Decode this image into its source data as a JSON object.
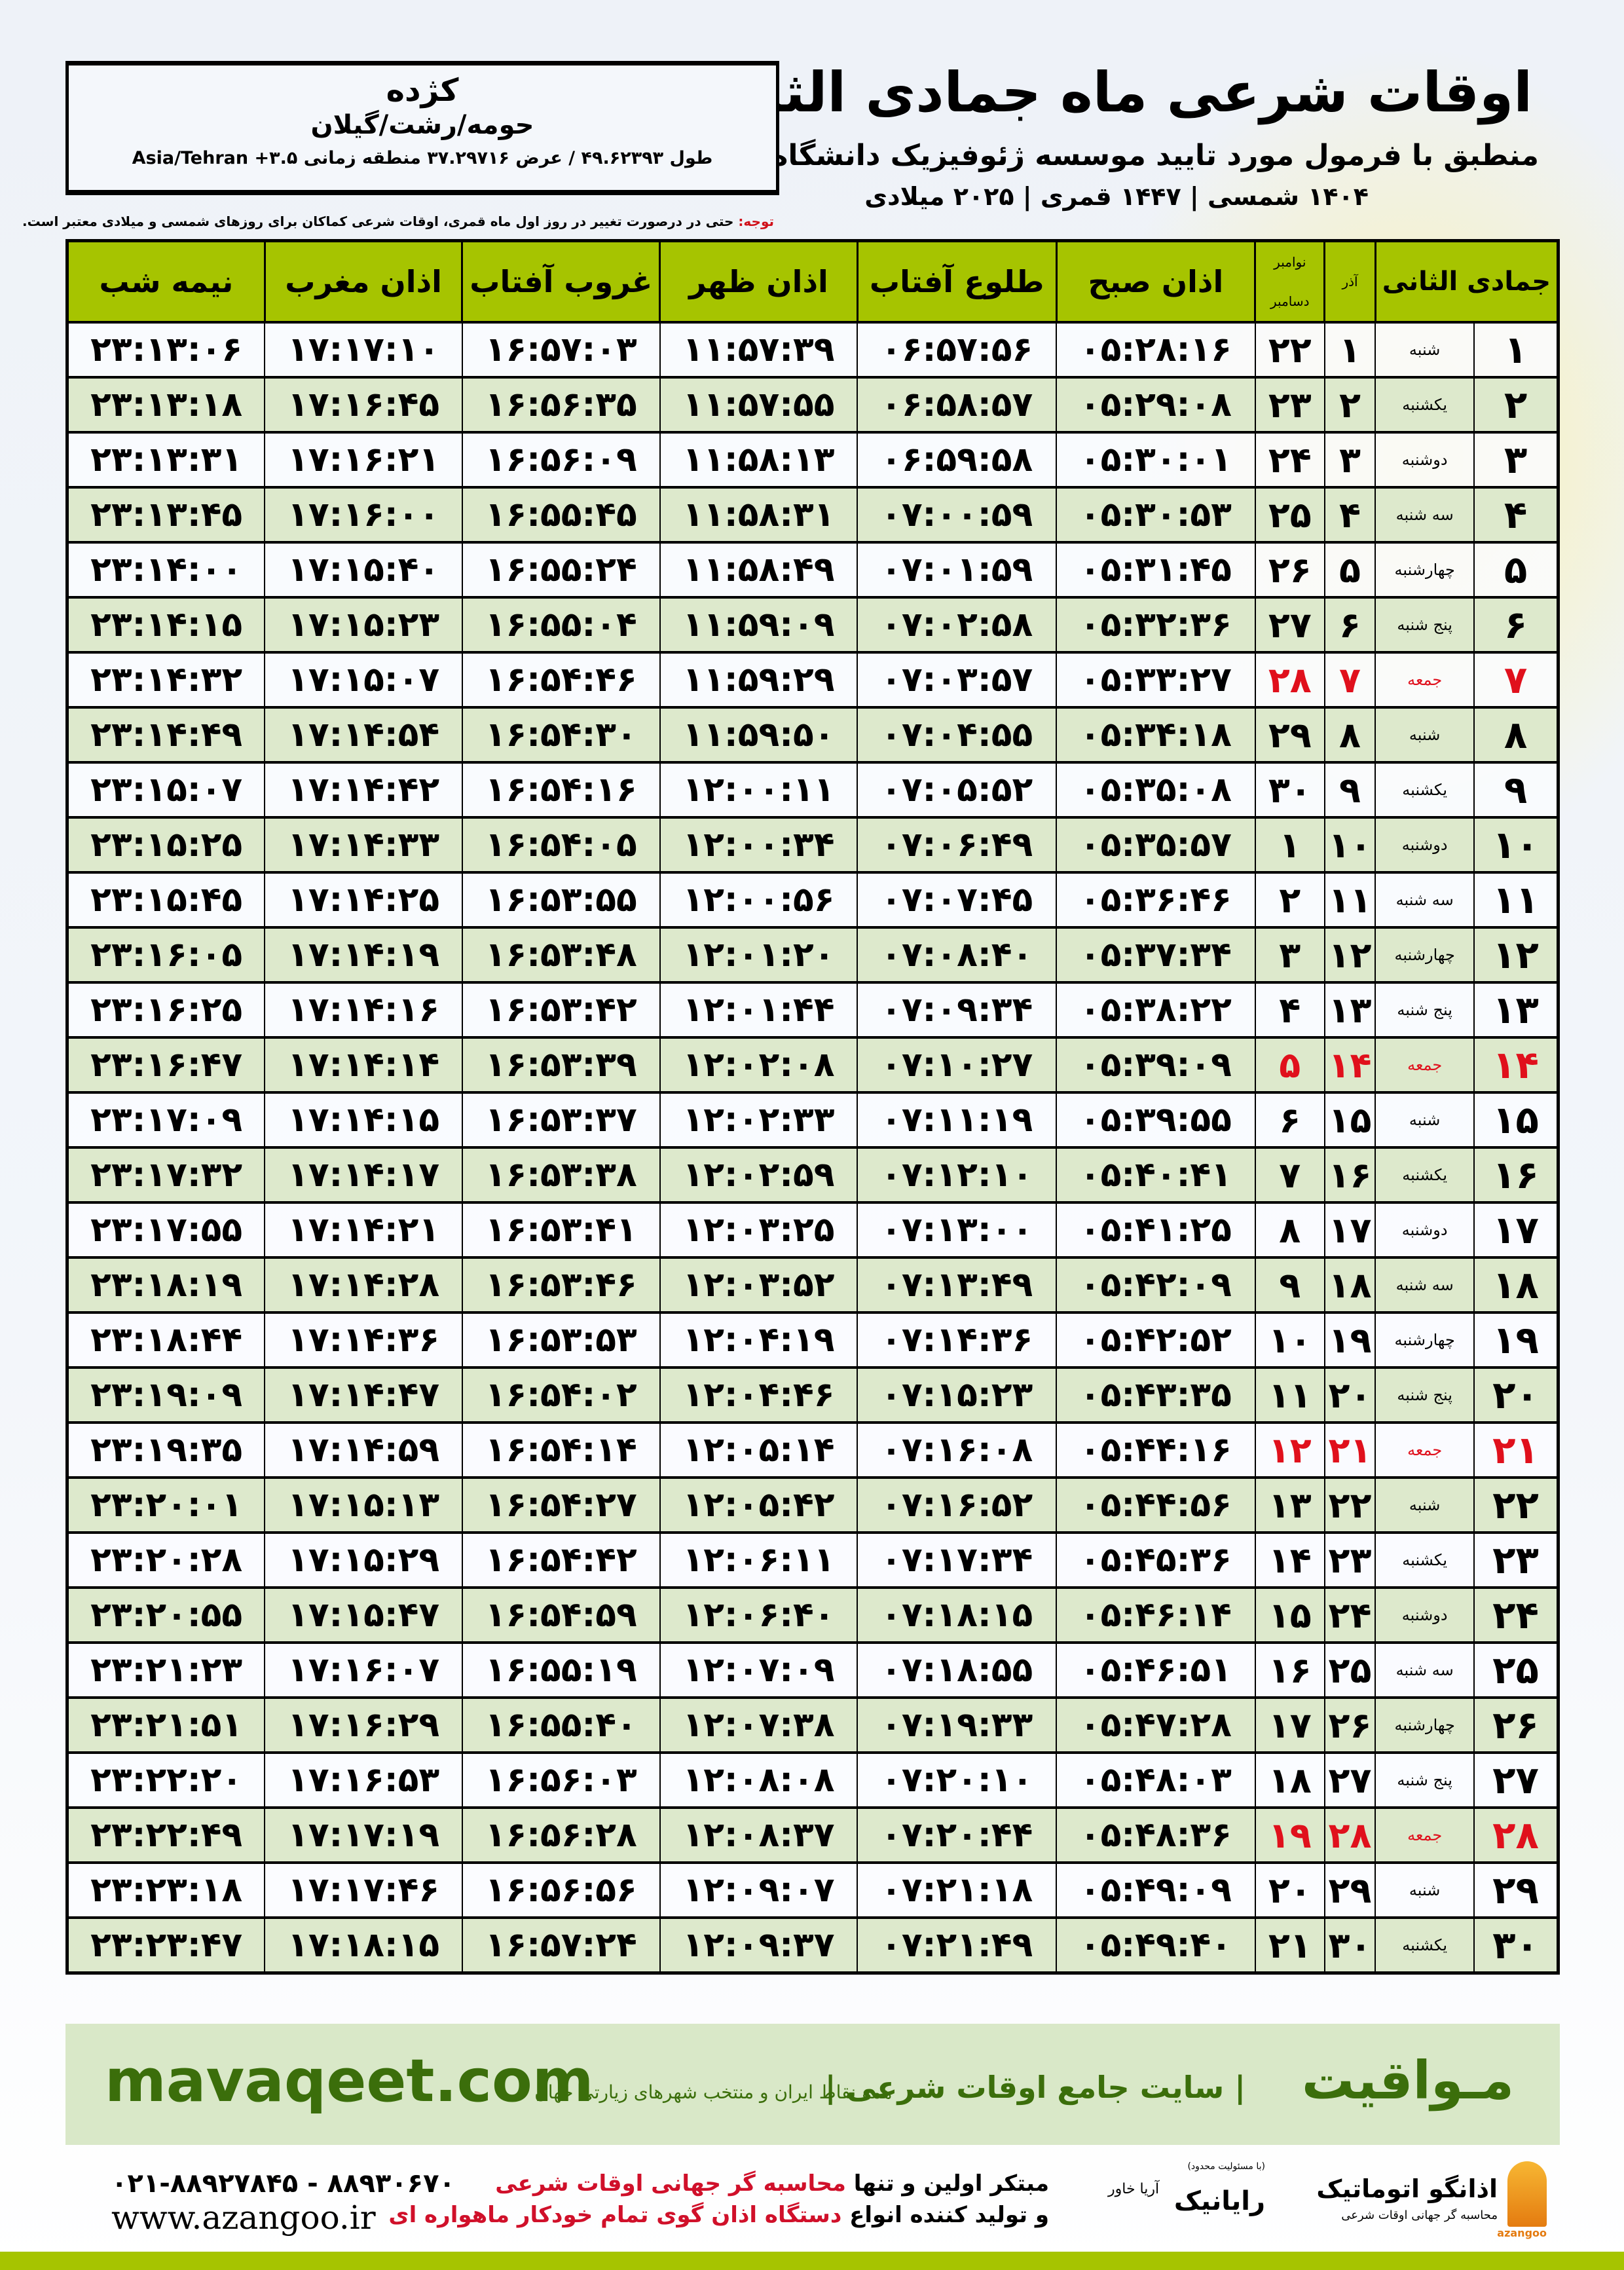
{
  "header": {
    "title": "اوقات شرعی ماه جمادی الثانی",
    "subtitle": "منطبق با فرمول مورد تایید موسسه ژئوفیزیک دانشگاه تهران",
    "dates": "۱۴۰۴ شمسی | ۱۴۴۷ قمری | ۲۰۲۵ میلادی"
  },
  "location": {
    "city": "کژده",
    "region": "حومه/رشت/گیلان",
    "coords": "طول ۴۹.۶۲۳۹۳ / عرض ۳۷.۲۹۷۱۶ منطقه زمانی ۳.۵+ Asia/Tehran"
  },
  "note": {
    "label": "توجه:",
    "text": " حتی در درصورت تغییر در روز اول ماه قمری، اوقات شرعی کماکان برای روزهای شمسی و میلادی معتبر است."
  },
  "table": {
    "headers": {
      "hijri": "جمادی الثانی",
      "azar": "آذر",
      "nov": "نوامبر",
      "dec": "دسامبر",
      "fajr": "اذان صبح",
      "sunrise": "طلوع آفتاب",
      "dhuhr": "اذان ظهر",
      "sunset": "غروب آفتاب",
      "maghrib": "اذان مغرب",
      "midnight": "نیمه شب"
    },
    "friday_color": "#e0101c",
    "header_color": "#a6c400",
    "rows": [
      {
        "day": "۱",
        "weekday": "شنبه",
        "azar": "۱",
        "gregorian": "۲۲",
        "fajr": "۰۵:۲۸:۱۶",
        "sunrise": "۰۶:۵۷:۵۶",
        "dhuhr": "۱۱:۵۷:۳۹",
        "sunset": "۱۶:۵۷:۰۳",
        "maghrib": "۱۷:۱۷:۱۰",
        "midnight": "۲۳:۱۳:۰۶",
        "friday": false
      },
      {
        "day": "۲",
        "weekday": "یکشنبه",
        "azar": "۲",
        "gregorian": "۲۳",
        "fajr": "۰۵:۲۹:۰۸",
        "sunrise": "۰۶:۵۸:۵۷",
        "dhuhr": "۱۱:۵۷:۵۵",
        "sunset": "۱۶:۵۶:۳۵",
        "maghrib": "۱۷:۱۶:۴۵",
        "midnight": "۲۳:۱۳:۱۸",
        "friday": false
      },
      {
        "day": "۳",
        "weekday": "دوشنبه",
        "azar": "۳",
        "gregorian": "۲۴",
        "fajr": "۰۵:۳۰:۰۱",
        "sunrise": "۰۶:۵۹:۵۸",
        "dhuhr": "۱۱:۵۸:۱۳",
        "sunset": "۱۶:۵۶:۰۹",
        "maghrib": "۱۷:۱۶:۲۱",
        "midnight": "۲۳:۱۳:۳۱",
        "friday": false
      },
      {
        "day": "۴",
        "weekday": "سه شنبه",
        "azar": "۴",
        "gregorian": "۲۵",
        "fajr": "۰۵:۳۰:۵۳",
        "sunrise": "۰۷:۰۰:۵۹",
        "dhuhr": "۱۱:۵۸:۳۱",
        "sunset": "۱۶:۵۵:۴۵",
        "maghrib": "۱۷:۱۶:۰۰",
        "midnight": "۲۳:۱۳:۴۵",
        "friday": false
      },
      {
        "day": "۵",
        "weekday": "چهارشنبه",
        "azar": "۵",
        "gregorian": "۲۶",
        "fajr": "۰۵:۳۱:۴۵",
        "sunrise": "۰۷:۰۱:۵۹",
        "dhuhr": "۱۱:۵۸:۴۹",
        "sunset": "۱۶:۵۵:۲۴",
        "maghrib": "۱۷:۱۵:۴۰",
        "midnight": "۲۳:۱۴:۰۰",
        "friday": false
      },
      {
        "day": "۶",
        "weekday": "پنج شنبه",
        "azar": "۶",
        "gregorian": "۲۷",
        "fajr": "۰۵:۳۲:۳۶",
        "sunrise": "۰۷:۰۲:۵۸",
        "dhuhr": "۱۱:۵۹:۰۹",
        "sunset": "۱۶:۵۵:۰۴",
        "maghrib": "۱۷:۱۵:۲۳",
        "midnight": "۲۳:۱۴:۱۵",
        "friday": false
      },
      {
        "day": "۷",
        "weekday": "جمعه",
        "azar": "۷",
        "gregorian": "۲۸",
        "fajr": "۰۵:۳۳:۲۷",
        "sunrise": "۰۷:۰۳:۵۷",
        "dhuhr": "۱۱:۵۹:۲۹",
        "sunset": "۱۶:۵۴:۴۶",
        "maghrib": "۱۷:۱۵:۰۷",
        "midnight": "۲۳:۱۴:۳۲",
        "friday": true
      },
      {
        "day": "۸",
        "weekday": "شنبه",
        "azar": "۸",
        "gregorian": "۲۹",
        "fajr": "۰۵:۳۴:۱۸",
        "sunrise": "۰۷:۰۴:۵۵",
        "dhuhr": "۱۱:۵۹:۵۰",
        "sunset": "۱۶:۵۴:۳۰",
        "maghrib": "۱۷:۱۴:۵۴",
        "midnight": "۲۳:۱۴:۴۹",
        "friday": false
      },
      {
        "day": "۹",
        "weekday": "یکشنبه",
        "azar": "۹",
        "gregorian": "۳۰",
        "fajr": "۰۵:۳۵:۰۸",
        "sunrise": "۰۷:۰۵:۵۲",
        "dhuhr": "۱۲:۰۰:۱۱",
        "sunset": "۱۶:۵۴:۱۶",
        "maghrib": "۱۷:۱۴:۴۲",
        "midnight": "۲۳:۱۵:۰۷",
        "friday": false
      },
      {
        "day": "۱۰",
        "weekday": "دوشنبه",
        "azar": "۱۰",
        "gregorian": "۱",
        "fajr": "۰۵:۳۵:۵۷",
        "sunrise": "۰۷:۰۶:۴۹",
        "dhuhr": "۱۲:۰۰:۳۴",
        "sunset": "۱۶:۵۴:۰۵",
        "maghrib": "۱۷:۱۴:۳۳",
        "midnight": "۲۳:۱۵:۲۵",
        "friday": false
      },
      {
        "day": "۱۱",
        "weekday": "سه شنبه",
        "azar": "۱۱",
        "gregorian": "۲",
        "fajr": "۰۵:۳۶:۴۶",
        "sunrise": "۰۷:۰۷:۴۵",
        "dhuhr": "۱۲:۰۰:۵۶",
        "sunset": "۱۶:۵۳:۵۵",
        "maghrib": "۱۷:۱۴:۲۵",
        "midnight": "۲۳:۱۵:۴۵",
        "friday": false
      },
      {
        "day": "۱۲",
        "weekday": "چهارشنبه",
        "azar": "۱۲",
        "gregorian": "۳",
        "fajr": "۰۵:۳۷:۳۴",
        "sunrise": "۰۷:۰۸:۴۰",
        "dhuhr": "۱۲:۰۱:۲۰",
        "sunset": "۱۶:۵۳:۴۸",
        "maghrib": "۱۷:۱۴:۱۹",
        "midnight": "۲۳:۱۶:۰۵",
        "friday": false
      },
      {
        "day": "۱۳",
        "weekday": "پنج شنبه",
        "azar": "۱۳",
        "gregorian": "۴",
        "fajr": "۰۵:۳۸:۲۲",
        "sunrise": "۰۷:۰۹:۳۴",
        "dhuhr": "۱۲:۰۱:۴۴",
        "sunset": "۱۶:۵۳:۴۲",
        "maghrib": "۱۷:۱۴:۱۶",
        "midnight": "۲۳:۱۶:۲۵",
        "friday": false
      },
      {
        "day": "۱۴",
        "weekday": "جمعه",
        "azar": "۱۴",
        "gregorian": "۵",
        "fajr": "۰۵:۳۹:۰۹",
        "sunrise": "۰۷:۱۰:۲۷",
        "dhuhr": "۱۲:۰۲:۰۸",
        "sunset": "۱۶:۵۳:۳۹",
        "maghrib": "۱۷:۱۴:۱۴",
        "midnight": "۲۳:۱۶:۴۷",
        "friday": true
      },
      {
        "day": "۱۵",
        "weekday": "شنبه",
        "azar": "۱۵",
        "gregorian": "۶",
        "fajr": "۰۵:۳۹:۵۵",
        "sunrise": "۰۷:۱۱:۱۹",
        "dhuhr": "۱۲:۰۲:۳۳",
        "sunset": "۱۶:۵۳:۳۷",
        "maghrib": "۱۷:۱۴:۱۵",
        "midnight": "۲۳:۱۷:۰۹",
        "friday": false
      },
      {
        "day": "۱۶",
        "weekday": "یکشنبه",
        "azar": "۱۶",
        "gregorian": "۷",
        "fajr": "۰۵:۴۰:۴۱",
        "sunrise": "۰۷:۱۲:۱۰",
        "dhuhr": "۱۲:۰۲:۵۹",
        "sunset": "۱۶:۵۳:۳۸",
        "maghrib": "۱۷:۱۴:۱۷",
        "midnight": "۲۳:۱۷:۳۲",
        "friday": false
      },
      {
        "day": "۱۷",
        "weekday": "دوشنبه",
        "azar": "۱۷",
        "gregorian": "۸",
        "fajr": "۰۵:۴۱:۲۵",
        "sunrise": "۰۷:۱۳:۰۰",
        "dhuhr": "۱۲:۰۳:۲۵",
        "sunset": "۱۶:۵۳:۴۱",
        "maghrib": "۱۷:۱۴:۲۱",
        "midnight": "۲۳:۱۷:۵۵",
        "friday": false
      },
      {
        "day": "۱۸",
        "weekday": "سه شنبه",
        "azar": "۱۸",
        "gregorian": "۹",
        "fajr": "۰۵:۴۲:۰۹",
        "sunrise": "۰۷:۱۳:۴۹",
        "dhuhr": "۱۲:۰۳:۵۲",
        "sunset": "۱۶:۵۳:۴۶",
        "maghrib": "۱۷:۱۴:۲۸",
        "midnight": "۲۳:۱۸:۱۹",
        "friday": false
      },
      {
        "day": "۱۹",
        "weekday": "چهارشنبه",
        "azar": "۱۹",
        "gregorian": "۱۰",
        "fajr": "۰۵:۴۲:۵۲",
        "sunrise": "۰۷:۱۴:۳۶",
        "dhuhr": "۱۲:۰۴:۱۹",
        "sunset": "۱۶:۵۳:۵۳",
        "maghrib": "۱۷:۱۴:۳۶",
        "midnight": "۲۳:۱۸:۴۴",
        "friday": false
      },
      {
        "day": "۲۰",
        "weekday": "پنج شنبه",
        "azar": "۲۰",
        "gregorian": "۱۱",
        "fajr": "۰۵:۴۳:۳۵",
        "sunrise": "۰۷:۱۵:۲۳",
        "dhuhr": "۱۲:۰۴:۴۶",
        "sunset": "۱۶:۵۴:۰۲",
        "maghrib": "۱۷:۱۴:۴۷",
        "midnight": "۲۳:۱۹:۰۹",
        "friday": false
      },
      {
        "day": "۲۱",
        "weekday": "جمعه",
        "azar": "۲۱",
        "gregorian": "۱۲",
        "fajr": "۰۵:۴۴:۱۶",
        "sunrise": "۰۷:۱۶:۰۸",
        "dhuhr": "۱۲:۰۵:۱۴",
        "sunset": "۱۶:۵۴:۱۴",
        "maghrib": "۱۷:۱۴:۵۹",
        "midnight": "۲۳:۱۹:۳۵",
        "friday": true
      },
      {
        "day": "۲۲",
        "weekday": "شنبه",
        "azar": "۲۲",
        "gregorian": "۱۳",
        "fajr": "۰۵:۴۴:۵۶",
        "sunrise": "۰۷:۱۶:۵۲",
        "dhuhr": "۱۲:۰۵:۴۲",
        "sunset": "۱۶:۵۴:۲۷",
        "maghrib": "۱۷:۱۵:۱۳",
        "midnight": "۲۳:۲۰:۰۱",
        "friday": false
      },
      {
        "day": "۲۳",
        "weekday": "یکشنبه",
        "azar": "۲۳",
        "gregorian": "۱۴",
        "fajr": "۰۵:۴۵:۳۶",
        "sunrise": "۰۷:۱۷:۳۴",
        "dhuhr": "۱۲:۰۶:۱۱",
        "sunset": "۱۶:۵۴:۴۲",
        "maghrib": "۱۷:۱۵:۲۹",
        "midnight": "۲۳:۲۰:۲۸",
        "friday": false
      },
      {
        "day": "۲۴",
        "weekday": "دوشنبه",
        "azar": "۲۴",
        "gregorian": "۱۵",
        "fajr": "۰۵:۴۶:۱۴",
        "sunrise": "۰۷:۱۸:۱۵",
        "dhuhr": "۱۲:۰۶:۴۰",
        "sunset": "۱۶:۵۴:۵۹",
        "maghrib": "۱۷:۱۵:۴۷",
        "midnight": "۲۳:۲۰:۵۵",
        "friday": false
      },
      {
        "day": "۲۵",
        "weekday": "سه شنبه",
        "azar": "۲۵",
        "gregorian": "۱۶",
        "fajr": "۰۵:۴۶:۵۱",
        "sunrise": "۰۷:۱۸:۵۵",
        "dhuhr": "۱۲:۰۷:۰۹",
        "sunset": "۱۶:۵۵:۱۹",
        "maghrib": "۱۷:۱۶:۰۷",
        "midnight": "۲۳:۲۱:۲۳",
        "friday": false
      },
      {
        "day": "۲۶",
        "weekday": "چهارشنبه",
        "azar": "۲۶",
        "gregorian": "۱۷",
        "fajr": "۰۵:۴۷:۲۸",
        "sunrise": "۰۷:۱۹:۳۳",
        "dhuhr": "۱۲:۰۷:۳۸",
        "sunset": "۱۶:۵۵:۴۰",
        "maghrib": "۱۷:۱۶:۲۹",
        "midnight": "۲۳:۲۱:۵۱",
        "friday": false
      },
      {
        "day": "۲۷",
        "weekday": "پنج شنبه",
        "azar": "۲۷",
        "gregorian": "۱۸",
        "fajr": "۰۵:۴۸:۰۳",
        "sunrise": "۰۷:۲۰:۱۰",
        "dhuhr": "۱۲:۰۸:۰۸",
        "sunset": "۱۶:۵۶:۰۳",
        "maghrib": "۱۷:۱۶:۵۳",
        "midnight": "۲۳:۲۲:۲۰",
        "friday": false
      },
      {
        "day": "۲۸",
        "weekday": "جمعه",
        "azar": "۲۸",
        "gregorian": "۱۹",
        "fajr": "۰۵:۴۸:۳۶",
        "sunrise": "۰۷:۲۰:۴۴",
        "dhuhr": "۱۲:۰۸:۳۷",
        "sunset": "۱۶:۵۶:۲۸",
        "maghrib": "۱۷:۱۷:۱۹",
        "midnight": "۲۳:۲۲:۴۹",
        "friday": true
      },
      {
        "day": "۲۹",
        "weekday": "شنبه",
        "azar": "۲۹",
        "gregorian": "۲۰",
        "fajr": "۰۵:۴۹:۰۹",
        "sunrise": "۰۷:۲۱:۱۸",
        "dhuhr": "۱۲:۰۹:۰۷",
        "sunset": "۱۶:۵۶:۵۶",
        "maghrib": "۱۷:۱۷:۴۶",
        "midnight": "۲۳:۲۳:۱۸",
        "friday": false
      },
      {
        "day": "۳۰",
        "weekday": "یکشنبه",
        "azar": "۳۰",
        "gregorian": "۲۱",
        "fajr": "۰۵:۴۹:۴۰",
        "sunrise": "۰۷:۲۱:۴۹",
        "dhuhr": "۱۲:۰۹:۳۷",
        "sunset": "۱۶:۵۷:۲۴",
        "maghrib": "۱۷:۱۸:۱۵",
        "midnight": "۲۳:۲۳:۴۷",
        "friday": false
      }
    ]
  },
  "banner": {
    "brand": "مـواقیت",
    "tagline": "| سایت جامع اوقات شرعی |",
    "tagline2": "همه نقاط ایران و منتخب شهرهای زیارتی جهان",
    "site": "mavaqeet.com",
    "color": "#3b6e0b",
    "background": "#d9e8c8"
  },
  "footer": {
    "logo1_title": "اذانگو اتوماتیک",
    "logo1_sub": "محاسبه گر جهانی اوقات شرعی",
    "logo1_latin": "azangoo",
    "logo2_small": "(با مسئولیت محدود)",
    "logo2_title": "رایانیک",
    "logo2_side": "آریا خاور",
    "slogan_line1_a": "مبتکر اولین و تنها ",
    "slogan_line1_b": "محاسبه گر جهانی اوقات شرعی",
    "slogan_line2_a": "و تولید کننده انواع ",
    "slogan_line2_b": "دستگاه اذان گوی تمام خودکار ماهواره ای",
    "phone": "۰۲۱-۸۸۹۲۷۸۴۵ - ۸۸۹۳۰۶۷۰",
    "website": "www.azangoo.ir"
  }
}
